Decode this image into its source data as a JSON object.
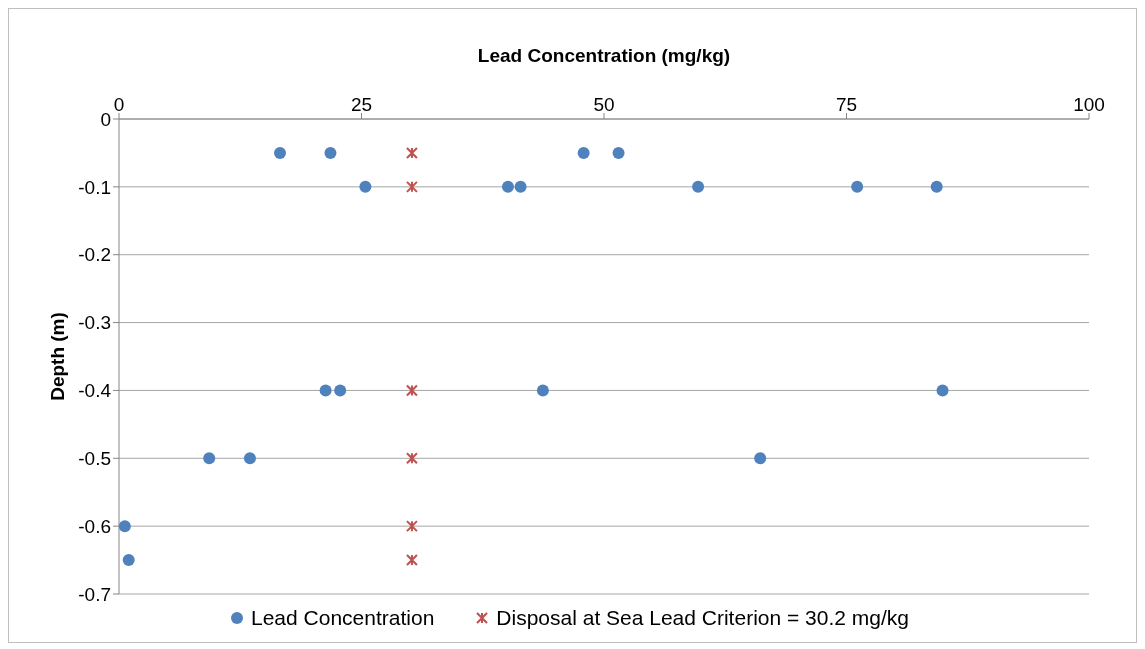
{
  "chart_data": {
    "type": "scatter",
    "xlabel": "Lead Concentration (mg/kg)",
    "ylabel": "Depth (m)",
    "xlim": [
      0,
      100
    ],
    "xticks": [
      0,
      25,
      50,
      75,
      100
    ],
    "ylim": [
      -0.7,
      0
    ],
    "yticks": [
      -0.7,
      -0.6,
      -0.5,
      -0.4,
      -0.3,
      -0.2,
      -0.1,
      0
    ],
    "grid": "y",
    "legend": "bottom",
    "series": [
      {
        "name": "Lead Concentration",
        "color": "#4f81bd",
        "marker": "circle",
        "x": [
          16.6,
          21.8,
          47.9,
          51.5,
          25.4,
          40.1,
          41.4,
          59.7,
          76.1,
          84.3,
          21.3,
          22.8,
          43.7,
          84.9,
          9.3,
          13.5,
          66.1,
          0.6,
          1.0
        ],
        "values": [
          -0.05,
          -0.05,
          -0.05,
          -0.05,
          -0.1,
          -0.1,
          -0.1,
          -0.1,
          -0.1,
          -0.1,
          -0.4,
          -0.4,
          -0.4,
          -0.4,
          -0.5,
          -0.5,
          -0.5,
          -0.6,
          -0.65
        ]
      },
      {
        "name": "Disposal at Sea Lead Criterion = 30.2 mg/kg",
        "color": "#c0504d",
        "marker": "cross",
        "x": [
          30.2,
          30.2,
          30.2,
          30.2,
          30.2,
          30.2
        ],
        "values": [
          -0.05,
          -0.1,
          -0.4,
          -0.5,
          -0.6,
          -0.65
        ]
      }
    ]
  }
}
